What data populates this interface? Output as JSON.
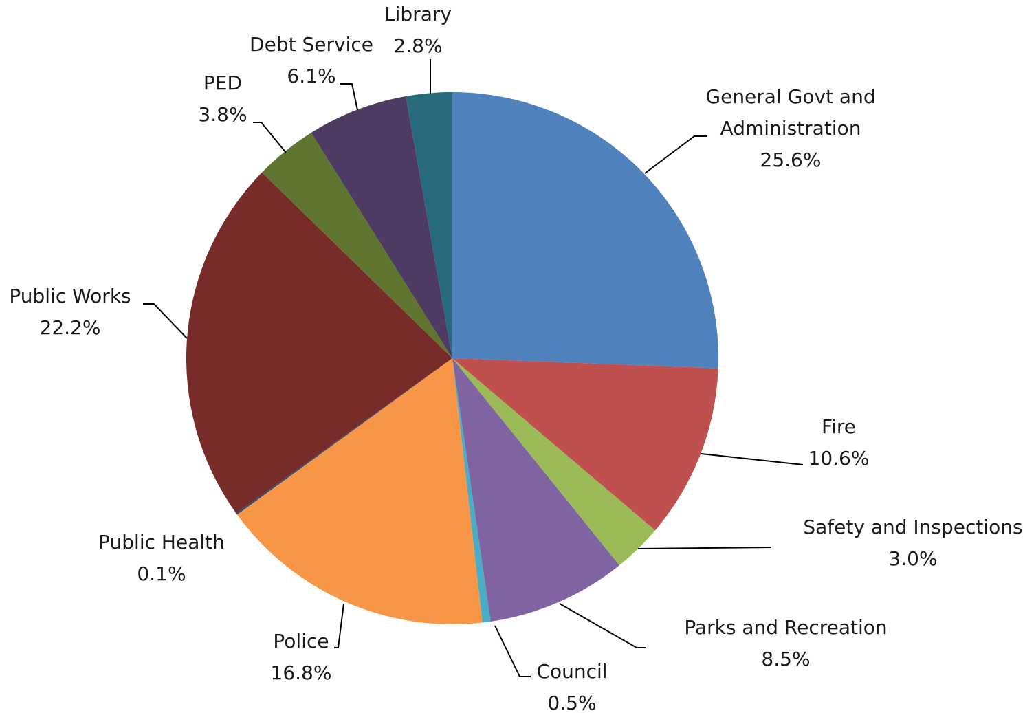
{
  "chart_data": {
    "type": "pie",
    "title": "",
    "start_angle_deg": 0,
    "direction": "clockwise",
    "slices": [
      {
        "label": [
          "General Govt and",
          "Administration"
        ],
        "value": 25.6,
        "value_label": "25.6%",
        "color": "#4F81BD"
      },
      {
        "label": [
          "Fire"
        ],
        "value": 10.6,
        "value_label": "10.6%",
        "color": "#C0504D"
      },
      {
        "label": [
          "Safety and Inspections"
        ],
        "value": 3.0,
        "value_label": "3.0%",
        "color": "#9BBB59"
      },
      {
        "label": [
          "Parks and Recreation"
        ],
        "value": 8.5,
        "value_label": "8.5%",
        "color": "#8064A2"
      },
      {
        "label": [
          "Council"
        ],
        "value": 0.5,
        "value_label": "0.5%",
        "color": "#4BACC6"
      },
      {
        "label": [
          "Police"
        ],
        "value": 16.8,
        "value_label": "16.8%",
        "color": "#F79646"
      },
      {
        "label": [
          "Public Health"
        ],
        "value": 0.1,
        "value_label": "0.1%",
        "color": "#2C4D75"
      },
      {
        "label": [
          "Public Works"
        ],
        "value": 22.2,
        "value_label": "22.2%",
        "color": "#772C2A"
      },
      {
        "label": [
          "PED"
        ],
        "value": 3.8,
        "value_label": "3.8%",
        "color": "#5F7530"
      },
      {
        "label": [
          "Debt Service"
        ],
        "value": 6.1,
        "value_label": "6.1%",
        "color": "#4D3B62"
      },
      {
        "label": [
          "Library"
        ],
        "value": 2.8,
        "value_label": "2.8%",
        "color": "#276A7C"
      }
    ]
  }
}
